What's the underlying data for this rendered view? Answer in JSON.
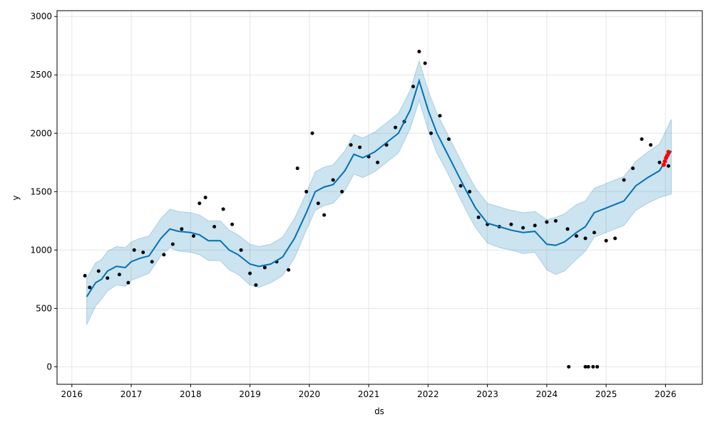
{
  "chart_data": {
    "type": "line",
    "title": "",
    "xlabel": "ds",
    "ylabel": "y",
    "xlim": [
      2015.75,
      2026.62
    ],
    "ylim": [
      -150,
      3050
    ],
    "grid": true,
    "x_ticks": [
      2016,
      2017,
      2018,
      2019,
      2020,
      2021,
      2022,
      2023,
      2024,
      2025,
      2026
    ],
    "y_ticks": [
      0,
      500,
      1000,
      1500,
      2000,
      2500,
      3000
    ],
    "colors": {
      "forecast_line": "#0072B2",
      "uncertainty_band": "#0072B2",
      "observed_points": "#000000",
      "highlight_points": "#ff0000",
      "grid": "#e6e6e6"
    },
    "series": [
      {
        "type": "line",
        "x": [
          2016.25,
          2016.4,
          2016.5,
          2016.6,
          2016.75,
          2016.9,
          2017.0,
          2017.15,
          2017.3,
          2017.5,
          2017.65,
          2017.8,
          2018.0,
          2018.15,
          2018.3,
          2018.5,
          2018.65,
          2018.8,
          2019.0,
          2019.15,
          2019.35,
          2019.55,
          2019.75,
          2019.95,
          2020.1,
          2020.25,
          2020.4,
          2020.6,
          2020.75,
          2020.9,
          2021.1,
          2021.3,
          2021.5,
          2021.7,
          2021.85,
          2022.0,
          2022.15,
          2022.3,
          2022.5,
          2022.65,
          2022.8,
          2023.0,
          2023.2,
          2023.4,
          2023.6,
          2023.8,
          2024.0,
          2024.15,
          2024.3,
          2024.5,
          2024.65,
          2024.8,
          2025.0,
          2025.15,
          2025.3,
          2025.5,
          2025.7,
          2025.9,
          2026.1
        ],
        "y": [
          600,
          720,
          750,
          820,
          860,
          850,
          900,
          930,
          950,
          1100,
          1180,
          1160,
          1150,
          1130,
          1080,
          1080,
          1000,
          960,
          880,
          860,
          880,
          940,
          1100,
          1320,
          1500,
          1540,
          1560,
          1680,
          1820,
          1790,
          1840,
          1920,
          2000,
          2200,
          2450,
          2200,
          2000,
          1850,
          1650,
          1500,
          1360,
          1230,
          1200,
          1170,
          1150,
          1160,
          1050,
          1040,
          1070,
          1150,
          1200,
          1320,
          1360,
          1390,
          1420,
          1550,
          1620,
          1680,
          1850
        ]
      },
      {
        "type": "band",
        "x": [
          2016.25,
          2016.4,
          2016.5,
          2016.6,
          2016.75,
          2016.9,
          2017.0,
          2017.15,
          2017.3,
          2017.5,
          2017.65,
          2017.8,
          2018.0,
          2018.15,
          2018.3,
          2018.5,
          2018.65,
          2018.8,
          2019.0,
          2019.15,
          2019.35,
          2019.55,
          2019.75,
          2019.95,
          2020.1,
          2020.25,
          2020.4,
          2020.6,
          2020.75,
          2020.9,
          2021.1,
          2021.3,
          2021.5,
          2021.7,
          2021.85,
          2022.0,
          2022.15,
          2022.3,
          2022.5,
          2022.65,
          2022.8,
          2023.0,
          2023.2,
          2023.4,
          2023.6,
          2023.8,
          2024.0,
          2024.15,
          2024.3,
          2024.5,
          2024.65,
          2024.8,
          2025.0,
          2025.15,
          2025.3,
          2025.5,
          2025.7,
          2025.9,
          2026.1
        ],
        "y_lower": [
          360,
          520,
          580,
          650,
          700,
          690,
          740,
          770,
          800,
          950,
          1020,
          990,
          980,
          960,
          910,
          910,
          830,
          790,
          700,
          680,
          720,
          780,
          930,
          1170,
          1340,
          1380,
          1400,
          1510,
          1650,
          1620,
          1670,
          1750,
          1830,
          2040,
          2280,
          2030,
          1830,
          1690,
          1480,
          1330,
          1190,
          1060,
          1020,
          1000,
          970,
          980,
          830,
          790,
          820,
          920,
          990,
          1110,
          1150,
          1180,
          1210,
          1340,
          1400,
          1450,
          1480
        ],
        "y_upper": [
          760,
          890,
          920,
          990,
          1030,
          1020,
          1070,
          1100,
          1120,
          1270,
          1350,
          1330,
          1320,
          1300,
          1250,
          1250,
          1170,
          1130,
          1050,
          1030,
          1050,
          1110,
          1270,
          1490,
          1670,
          1710,
          1730,
          1850,
          1990,
          1960,
          2010,
          2090,
          2170,
          2370,
          2620,
          2370,
          2170,
          2020,
          1820,
          1670,
          1530,
          1400,
          1370,
          1340,
          1320,
          1330,
          1260,
          1280,
          1310,
          1390,
          1420,
          1530,
          1570,
          1600,
          1630,
          1760,
          1840,
          1910,
          2120
        ]
      },
      {
        "type": "scatter",
        "x": [
          2016.22,
          2016.3,
          2016.45,
          2016.6,
          2016.8,
          2016.95,
          2017.05,
          2017.2,
          2017.35,
          2017.55,
          2017.7,
          2017.85,
          2018.05,
          2018.15,
          2018.25,
          2018.4,
          2018.55,
          2018.7,
          2018.85,
          2019.0,
          2019.1,
          2019.25,
          2019.45,
          2019.65,
          2019.8,
          2019.95,
          2020.05,
          2020.15,
          2020.25,
          2020.4,
          2020.55,
          2020.7,
          2020.85,
          2021.0,
          2021.15,
          2021.3,
          2021.45,
          2021.6,
          2021.75,
          2021.85,
          2021.95,
          2022.05,
          2022.2,
          2022.35,
          2022.55,
          2022.7,
          2022.85,
          2023.0,
          2023.2,
          2023.4,
          2023.6,
          2023.8,
          2024.0,
          2024.15,
          2024.35,
          2024.5,
          2024.65,
          2024.8,
          2025.0,
          2025.15,
          2025.3,
          2025.45,
          2025.6,
          2025.75,
          2025.9,
          2026.05,
          2024.37,
          2024.65,
          2024.7,
          2024.78,
          2024.85
        ],
        "y": [
          780,
          680,
          820,
          760,
          790,
          720,
          1000,
          980,
          900,
          960,
          1050,
          1180,
          1120,
          1400,
          1450,
          1200,
          1350,
          1220,
          1000,
          800,
          700,
          850,
          900,
          830,
          1700,
          1500,
          2000,
          1400,
          1300,
          1600,
          1500,
          1900,
          1880,
          1800,
          1750,
          1900,
          2050,
          2100,
          2400,
          2700,
          2600,
          2000,
          2150,
          1950,
          1550,
          1500,
          1280,
          1220,
          1200,
          1220,
          1190,
          1210,
          1240,
          1250,
          1180,
          1120,
          1100,
          1150,
          1080,
          1100,
          1600,
          1700,
          1950,
          1900,
          1750,
          1720,
          0,
          0,
          0,
          0,
          0
        ]
      },
      {
        "type": "scatter_highlight",
        "x": [
          2025.97,
          2025.99,
          2026.01,
          2026.03,
          2026.05
        ],
        "y": [
          1730,
          1760,
          1790,
          1810,
          1840
        ]
      }
    ]
  }
}
